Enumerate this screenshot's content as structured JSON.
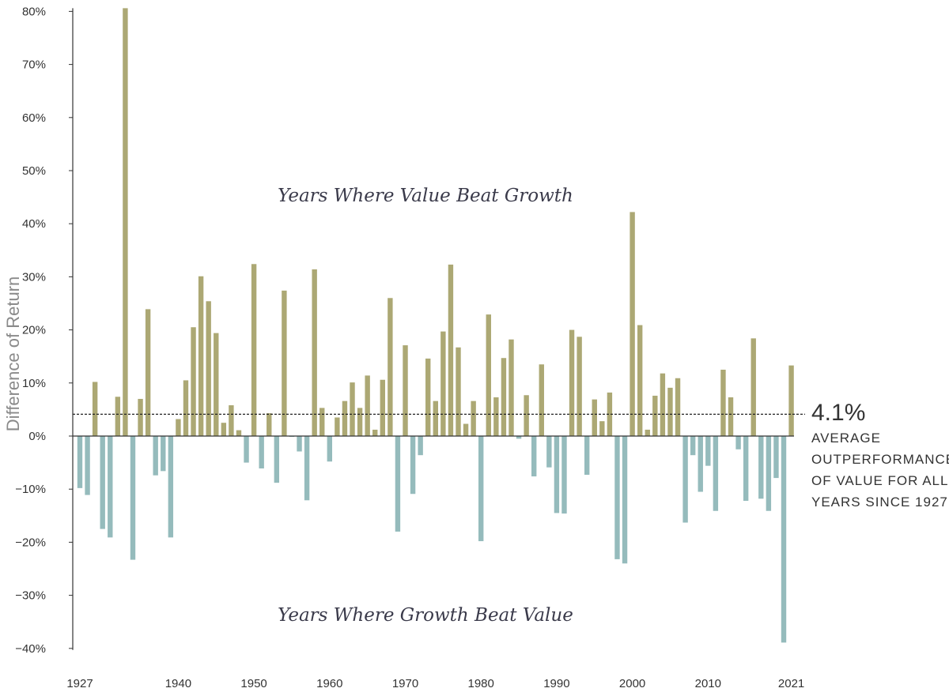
{
  "chart_data": {
    "type": "bar",
    "ylabel": "Difference of Return",
    "ylim": [
      -40,
      80
    ],
    "y_ticks": [
      "80%",
      "70%",
      "60%",
      "50%",
      "40%",
      "30%",
      "20%",
      "10%",
      "0%",
      "−10%",
      "−20%",
      "−30%",
      "−40%"
    ],
    "y_tick_values": [
      80,
      70,
      60,
      50,
      40,
      30,
      20,
      10,
      0,
      -10,
      -20,
      -30,
      -40
    ],
    "x_ticks": [
      "1927",
      "1940",
      "1950",
      "1960",
      "1970",
      "1980",
      "1990",
      "2000",
      "2010",
      "2021"
    ],
    "x_tick_years": [
      1927,
      1940,
      1950,
      1960,
      1970,
      1980,
      1990,
      2000,
      2010,
      2021
    ],
    "x": [
      1927,
      1928,
      1929,
      1930,
      1931,
      1932,
      1933,
      1934,
      1935,
      1936,
      1937,
      1938,
      1939,
      1940,
      1941,
      1942,
      1943,
      1944,
      1945,
      1946,
      1947,
      1948,
      1949,
      1950,
      1951,
      1952,
      1953,
      1954,
      1955,
      1956,
      1957,
      1958,
      1959,
      1960,
      1961,
      1962,
      1963,
      1964,
      1965,
      1966,
      1967,
      1968,
      1969,
      1970,
      1971,
      1972,
      1973,
      1974,
      1975,
      1976,
      1977,
      1978,
      1979,
      1980,
      1981,
      1982,
      1983,
      1984,
      1985,
      1986,
      1987,
      1988,
      1989,
      1990,
      1991,
      1992,
      1993,
      1994,
      1995,
      1996,
      1997,
      1998,
      1999,
      2000,
      2001,
      2002,
      2003,
      2004,
      2005,
      2006,
      2007,
      2008,
      2009,
      2010,
      2011,
      2012,
      2013,
      2014,
      2015,
      2016,
      2017,
      2018,
      2019,
      2020,
      2021
    ],
    "values": [
      -9.8,
      -11.1,
      10.2,
      -17.5,
      -19.1,
      7.4,
      80.6,
      -23.3,
      7.0,
      23.9,
      -7.4,
      -6.6,
      -19.1,
      3.2,
      10.5,
      20.5,
      30.1,
      25.4,
      19.4,
      2.5,
      5.8,
      1.1,
      -5.0,
      32.4,
      -6.1,
      4.3,
      -8.8,
      27.4,
      -0.1,
      -2.9,
      -12.1,
      31.4,
      5.3,
      -4.8,
      3.5,
      6.6,
      10.1,
      5.3,
      11.4,
      1.2,
      10.6,
      26.0,
      -18.0,
      17.1,
      -10.9,
      -3.6,
      14.6,
      6.6,
      19.7,
      32.3,
      16.7,
      2.3,
      6.6,
      -19.8,
      22.9,
      7.3,
      14.7,
      18.2,
      -0.5,
      7.7,
      -7.6,
      13.5,
      -5.9,
      -14.5,
      -14.6,
      20.0,
      18.7,
      -7.3,
      6.9,
      2.8,
      8.2,
      -23.2,
      -24.0,
      42.2,
      20.9,
      1.2,
      7.6,
      11.8,
      9.1,
      10.9,
      -16.3,
      -3.6,
      -10.5,
      -5.6,
      -14.1,
      12.5,
      7.3,
      -2.5,
      -12.2,
      18.4,
      -11.8,
      -14.1,
      -7.9,
      -38.9,
      13.3
    ],
    "average": 4.1,
    "colors": {
      "positive": "#aca874",
      "negative": "#95bbbc",
      "axis": "#333333",
      "average_line": "#222222"
    },
    "annotations": {
      "top": "Years Where Value Beat Growth",
      "bottom": "Years Where Growth Beat Value",
      "avg_value": "4.1%",
      "avg_lines": [
        "AVERAGE",
        "OUTPERFORMANCE",
        "OF VALUE FOR ALL",
        "YEARS SINCE 1927"
      ]
    }
  }
}
